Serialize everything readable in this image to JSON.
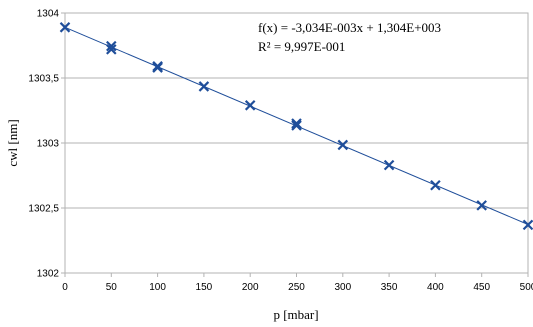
{
  "chart_data": {
    "type": "scatter",
    "title": "",
    "xlabel": "p [mbar]",
    "ylabel": "cwl [nm]",
    "xlim": [
      0,
      500
    ],
    "ylim": [
      1302,
      1304
    ],
    "x_ticks": [
      "0",
      "50",
      "100",
      "150",
      "200",
      "250",
      "300",
      "350",
      "400",
      "450",
      "500"
    ],
    "y_ticks": [
      "1302",
      "1302,5",
      "1303",
      "1303,5",
      "1304"
    ],
    "grid": true,
    "marker": "x",
    "color": "#1f4e9a",
    "series": [
      {
        "x": [
          0,
          50,
          50,
          100,
          100,
          150,
          200,
          250,
          250,
          300,
          350,
          400,
          450,
          500
        ],
        "y": [
          1303.89,
          1303.745,
          1303.72,
          1303.59,
          1303.58,
          1303.435,
          1303.29,
          1303.15,
          1303.135,
          1302.985,
          1302.83,
          1302.675,
          1302.52,
          1302.37
        ]
      }
    ],
    "trendline": {
      "slope": -0.003034,
      "intercept": 1303.89
    },
    "annotations": [
      "f(x) = -3,034E-003x + 1,304E+003",
      "R² = 9,997E-001"
    ]
  }
}
